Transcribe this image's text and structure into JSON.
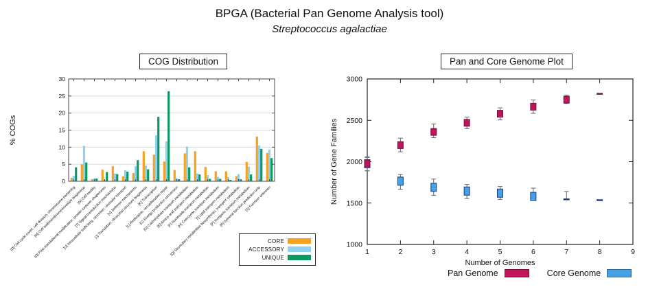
{
  "page": {
    "title": "BPGA (Bacterial Pan Genome Analysis tool)",
    "subtitle": "Streptococcus agalactiae"
  },
  "chart_data": [
    {
      "type": "bar",
      "title": "COG Distribution",
      "xlabel": "",
      "ylabel": "% COGs",
      "ylim": [
        0,
        30
      ],
      "ytick_step": 5,
      "grid": true,
      "legend_position": "bottom-right-box",
      "categories": [
        "[D] Cell cycle contrl, cell division, chromosome partioning",
        "[M] Cell wall/membrane/envelope biogenesis",
        "[N] Cell motility",
        "[O] Post-translational modification, protein turnover chaperones",
        "[T] Signal transduction mechanisms",
        "[U] Intracellular trafficking, secretion, vesicular transport",
        "[V] Defense mechanisms",
        "[J] Translation, ribosomal structure biogenesis",
        "[K] Transcription",
        "[L] Replication, recombination repair",
        "[C] Energy production conversion",
        "[G] Carbohydrate transport metabolism",
        "[E] Amino acid transport metabolism",
        "[F] Nucleotide transport metabolism",
        "[H] Coenzyme transport metabolism",
        "[I] Lipid transport metabolism",
        "[Q] Secondary metabolites biosynthesis, transport catabolism",
        "[P] Inorganic transport metabolism",
        "[R] General function prediction only",
        "[S] Function unknown"
      ],
      "series": [
        {
          "name": "CORE",
          "color": "#F6A120",
          "values": [
            1.0,
            5.0,
            0.6,
            3.4,
            4.4,
            1.5,
            2.4,
            8.8,
            7.8,
            5.8,
            3.3,
            8.2,
            8.8,
            4.2,
            2.9,
            2.9,
            1.5,
            5.7,
            13.1,
            8.3
          ]
        },
        {
          "name": "ACCESSORY",
          "color": "#8FD2F0",
          "values": [
            1.6,
            10.4,
            0.8,
            0.4,
            2.3,
            3.2,
            4.4,
            4.6,
            13.5,
            11.7,
            0.9,
            10.2,
            2.3,
            1.8,
            1.3,
            1.3,
            2.1,
            4.3,
            10.5,
            9.3
          ]
        },
        {
          "name": "UNIQUE",
          "color": "#0D9A62",
          "values": [
            4.1,
            5.5,
            0.8,
            2.7,
            2.1,
            2.8,
            6.2,
            3.5,
            18.9,
            26.4,
            0.6,
            4.1,
            2.0,
            0.7,
            0.7,
            0.4,
            0.6,
            2.0,
            9.5,
            6.8
          ]
        }
      ]
    },
    {
      "type": "scatter",
      "title": "Pan and Core Genome Plot",
      "xlabel": "Number of Genomes",
      "ylabel": "Number of Gene Families",
      "xlim": [
        1,
        9
      ],
      "ylim": [
        1000,
        3000
      ],
      "xticks": [
        1,
        2,
        3,
        4,
        5,
        6,
        7,
        8,
        9
      ],
      "ytick_step": 500,
      "grid": false,
      "legend_position": "bottom",
      "series": [
        {
          "name": "Pan Genome",
          "color": "#C1145A",
          "edge": "#70123C",
          "marker_h": 10,
          "points": [
            {
              "x": 1,
              "v": 1980,
              "lo": 1890,
              "hi": 2060,
              "m": "box"
            },
            {
              "x": 2,
              "v": 2200,
              "lo": 2120,
              "hi": 2285,
              "m": "box"
            },
            {
              "x": 3,
              "v": 2360,
              "lo": 2290,
              "hi": 2455,
              "m": "box"
            },
            {
              "x": 4,
              "v": 2470,
              "lo": 2400,
              "hi": 2540,
              "m": "box"
            },
            {
              "x": 5,
              "v": 2580,
              "lo": 2505,
              "hi": 2650,
              "m": "box"
            },
            {
              "x": 6,
              "v": 2665,
              "lo": 2585,
              "hi": 2745,
              "m": "box"
            },
            {
              "x": 7,
              "v": 2750,
              "lo": 2705,
              "hi": 2805,
              "m": "box"
            },
            {
              "x": 8,
              "v": 2820,
              "lo": 2820,
              "hi": 2820,
              "m": "dash"
            }
          ]
        },
        {
          "name": "Core Genome",
          "color": "#45A0E6",
          "edge": "#1B3F7E",
          "marker_h": 12,
          "points": [
            {
              "x": 1,
              "v": 1975,
              "lo": 1890,
              "hi": 2050,
              "m": "box"
            },
            {
              "x": 2,
              "v": 1765,
              "lo": 1665,
              "hi": 1845,
              "m": "box"
            },
            {
              "x": 3,
              "v": 1690,
              "lo": 1595,
              "hi": 1790,
              "m": "box"
            },
            {
              "x": 4,
              "v": 1645,
              "lo": 1555,
              "hi": 1725,
              "m": "box"
            },
            {
              "x": 5,
              "v": 1620,
              "lo": 1545,
              "hi": 1700,
              "m": "box"
            },
            {
              "x": 6,
              "v": 1580,
              "lo": 1550,
              "hi": 1680,
              "m": "box"
            },
            {
              "x": 7,
              "v": 1545,
              "lo": 1545,
              "hi": 1640,
              "m": "dash"
            },
            {
              "x": 8,
              "v": 1535,
              "lo": 1535,
              "hi": 1535,
              "m": "dash"
            }
          ]
        }
      ]
    }
  ]
}
